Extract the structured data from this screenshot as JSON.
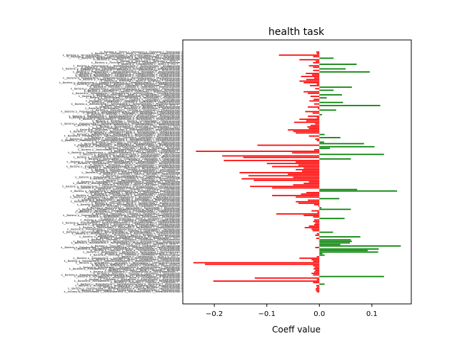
{
  "chart_data": {
    "type": "bar",
    "orientation": "horizontal",
    "title": "health task",
    "xlabel": "Coeff value",
    "ylabel": "",
    "xlim": [
      -0.26,
      0.175
    ],
    "xticks": [
      -0.2,
      -0.1,
      0.0,
      0.1
    ],
    "xtick_labels": [
      "−0.2",
      "−0.1",
      "0.0",
      "0.1"
    ],
    "grid": false,
    "legend": "none",
    "colors": {
      "positive": "#008000",
      "negative": "#ff0000",
      "axes": "#000000"
    },
    "categories": [
      "k__Bacteria; p__Thermi; c__Deinococci; o__Thermales; f__Thermaceae",
      "k__Bacteria; p__Firmicutes; c__Bacilli; o__Lactobacillales; f__Streptococcaceae",
      "k__Bacteria; p__Verrucomicrobia; c__Verrucomicrobiae; o__Verrucomicrobiales; f__Verrucomicrobiaceae",
      "k__Bacteria; p__Proteobacteria; c__Gammaproteobacteria; o__Pseudomonadales; f__Moraxellaceae",
      "k__Bacteria; p__Bacteroidetes; c__Bacteroidia; o__Bacteroidales; f__Porphyromonadaceae",
      "k__Bacteria; p__Firmicutes; c__Clostridia; o__Clostridiales; f__Veillonellaceae",
      "k__Bacteria; p__Tenericutes; c__Mollicutes; o__RF39; f__",
      "k__Bacteria; p__Firmicutes; c__Clostridia; o__Clostridiales; f__Lachnospiraceae",
      "k__Bacteria; p__Cyanobacteria; c__4C0d-2; o__YS2; f__",
      "k__Bacteria; p__Proteobacteria; c__Betaproteobacteria; o__Burkholderiales; f__Alcaligenaceae",
      "k__Bacteria; p__Spirochaetes; c__Spirochaetes; o__Spirochaetales; f__Spirochaetaceae",
      "k__Bacteria; p__Proteobacteria; c__Gammaproteobacteria; o__Enterobacteriales; f__Enterobacteriaceae",
      "k__Bacteria; p__Actinobacteria; c__Actinobacteria; o__Actinomycetales; f__Micrococcaceae",
      "k__Bacteria; p__Proteobacteria; c__Alphaproteobacteria; o__Rhizobiales; f__Bradyrhizobiaceae",
      "k__Bacteria; p__Firmicutes; c__Erysipelotrichi; o__Erysipelotrichales; f__Erysipelotrichaceae",
      "k__Bacteria; p__Actinobacteria; c__Coriobacteriia; o__Coriobacteriales; f__Coriobacteriaceae",
      "k__Bacteria; p__Bacteroidetes; c__Flavobacteriia; o__Flavobacteriales; f__Flavobacteriaceae",
      "k__Bacteria; p__Proteobacteria; c__Deltaproteobacteria; o__Desulfovibrionales; f__Desulfovibrionaceae",
      "k__Bacteria; p__Fusobacteria; c__Fusobacteriia; o__Fusobacteriales; f__Fusobacteriaceae",
      "k__Bacteria; p__Firmicutes; c__Bacilli; o__Gemellales; f__Gemellaceae",
      "k__Bacteria; p__Proteobacteria; c__Epsilonproteobacteria; o__Campylobacterales; f__Campylobacteraceae",
      "k__Bacteria; p__Actinobacteria; c__Actinobacteria; o__Bifidobacteriales; f__Bifidobacteriaceae",
      "k__Bacteria; p__Bacteroidetes; c__Bacteroidia; o__Bacteroidales; f__Rikenellaceae",
      "k__Bacteria; p__Firmicutes; c__Clostridia; o__Clostridiales; f__Ruminococcaceae",
      "k__Bacteria; p__Proteobacteria; c__Gammaproteobacteria; o__Pasteurellales; f__Pasteurellaceae",
      "k__Bacteria; p__Lentisphaerae; c__[Lentisphaeria]; o__Victivallales; f__Victivallaceae",
      "k__Bacteria; p__Firmicutes; c__Clostridia; o__Clostridiales; f__Peptostreptococcaceae",
      "k__Bacteria; p__Actinobacteria; c__Actinobacteria; o__Actinomycetales; f__Corynebacteriaceae",
      "k__Bacteria; p__Firmicutes; c__Bacilli; o__Lactobacillales; f__Lactobacillaceae",
      "k__Bacteria; p__Proteobacteria; c__Betaproteobacteria; o__Neisseriales; f__Neisseriaceae",
      "k__Bacteria; p__Bacteroidetes; c__Bacteroidia; o__Bacteroidales; f__Prevotellaceae",
      "k__Bacteria; p__Firmicutes; c__Clostridia; o__Clostridiales; f__Clostridiaceae",
      "k__Bacteria; p__Synergistetes; c__Synergistia; o__Synergistales; f__Synergistaceae",
      "k__Bacteria; p__Firmicutes; c__Clostridia; o__Clostridiales; f__[Mogibacteriaceae]",
      "k__Bacteria; p__Actinobacteria; c__Actinobacteria; o__Actinomycetales; f__Propionibacteriaceae",
      "k__Bacteria; p__Proteobacteria; c__Alphaproteobacteria; o__RF32; f__",
      "k__Bacteria; p__Firmicutes; c__Bacilli; o__Bacillales; f__Staphylococcaceae",
      "k__Bacteria; p__Bacteroidetes; c__Bacteroidia; o__Bacteroidales; f__Bacteroidaceae",
      "k__Bacteria; p__Firmicutes; c__Clostridia; o__Clostridiales; f__[Tissierellaceae]",
      "k__Bacteria; p__Proteobacteria; c__Gammaproteobacteria; o__Xanthomonadales; f__Xanthomonadaceae",
      "k__Bacteria; p__Bacteroidetes; c__Bacteroidia; o__Bacteroidales; f__[Barnesiellaceae]",
      "k__Bacteria; p__Firmicutes; c__Clostridia; o__Clostridiales; f__Christensenellaceae",
      "k__Bacteria; p__Proteobacteria; c__Alphaproteobacteria; o__Rhodospirillales; f__Rhodospirillaceae",
      "k__Bacteria; p__Proteobacteria; c__Betaproteobacteria; o__Burkholderiales; f__Comamonadaceae",
      "k__Bacteria; p__Bacteroidetes; c__Bacteroidia; o__Bacteroidales; f__[Paraprevotellaceae]",
      "k__Bacteria; p__Firmicutes; c__Bacilli; o__Lactobacillales; f__Enterococcaceae",
      "k__Bacteria; p__Firmicutes; c__Clostridia; o__Clostridiales; f__Eubacteriaceae",
      "k__Bacteria; p__Proteobacteria; c__Gammaproteobacteria; o__Pseudomonadales; f__Pseudomonadaceae",
      "k__Bacteria; p__Actinobacteria; c__Actinobacteria; o__Actinomycetales; f__Actinomycetaceae",
      "k__Bacteria; p__Bacteroidetes; c__Bacteroidia; o__Bacteroidales; f__S24-7",
      "k__Bacteria; p__Firmicutes; c__Clostridia; o__Clostridiales; f__[Odoribacteraceae]",
      "k__Bacteria; p__Tenericutes; c__Mollicutes; o__Anaeroplasmatales; f__Anaeroplasmataceae",
      "k__Bacteria; p__Proteobacteria; c__Betaproteobacteria; o__Burkholderiales; f__Oxalobacteraceae",
      "k__Bacteria; p__Firmicutes; c__Bacilli; o__Turicibacterales; f__Turicibacteraceae",
      "k__Bacteria; p__Actinobacteria; c__Actinobacteria; o__Actinomycetales; f__Dermabacteraceae",
      "k__Bacteria; p__Proteobacteria; c__Gammaproteobacteria; o__Aeromonadales; f__Succinivibrionaceae",
      "k__Bacteria; p__Firmicutes; c__Clostridia; o__Clostridiales; f__Dehalobacteriaceae",
      "k__Bacteria; p__Bacteroidetes; c__Sphingobacteriia; o__Sphingobacteriales; f__Sphingobacteriaceae",
      "k__Bacteria; p__Proteobacteria; c__Alphaproteobacteria; o__Sphingomonadales; f__Sphingomonadaceae",
      "k__Bacteria; p__Firmicutes; c__Clostridia; o__Clostridiales; f__Peptococcaceae",
      "k__Bacteria; p__Tenericutes; c__Mollicutes; o__Mycoplasmatales; f__Mycoplasmataceae",
      "k__Bacteria; p__Actinobacteria; c__Actinobacteria; o__Actinomycetales; f__Brevibacteriaceae",
      "k__Bacteria; p__Proteobacteria; c__Gammaproteobacteria; o__Vibrionales; f__Vibrionaceae",
      "k__Bacteria; p__Firmicutes; c__Bacilli; o__Bacillales; f__Bacillaceae",
      "k__Bacteria; p__Bacteroidetes; c__Flavobacteriia; o__Flavobacteriales; f__[Weeksellaceae]",
      "k__Bacteria; p__Firmicutes; c__Clostridia; o__Clostridiales; f__",
      "k__Bacteria; p__Proteobacteria; c__Alphaproteobacteria; o__Caulobacterales; f__Caulobacteraceae",
      "k__Bacteria; p__Actinobacteria; c__Actinobacteria; o__Actinomycetales; f__Nocardiaceae",
      "k__Bacteria; p__Firmicutes; c__Bacilli; o__Lactobacillales; f__Aerococcaceae",
      "k__Bacteria; p__Proteobacteria; c__Betaproteobacteria; o__Rhodocyclales; f__Rhodocyclaceae",
      "k__Bacteria; p__Bacteroidetes; c__Cytophagia; o__Cytophagales; f__Cytophagaceae",
      "k__Bacteria; p__Firmicutes; c__Clostridia; o__Clostridiales; f__Veillonellaceae",
      "k__Bacteria; p__Proteobacteria; c__Gammaproteobacteria; o__Alteromonadales; f__Shewanellaceae",
      "k__Bacteria; p__Actinobacteria; c__Actinobacteria; o__Actinomycetales; f__Microbacteriaceae",
      "k__Bacteria; p__Firmicutes; c__Bacilli; o__Lactobacillales; f__Carnobacteriaceae",
      "k__Bacteria; p__Proteobacteria; c__Alphaproteobacteria; o__Rhodobacterales; f__Rhodobacteraceae",
      "k__Bacteria; p__Bacteroidetes; c__Bacteroidia; o__Bacteroidales; f__Marinilabiaceae",
      "k__Bacteria; p__Firmicutes; c__Clostridia; o__Clostridiales; f__Lachnospiraceae",
      "k__Bacteria; p__Proteobacteria; c__Deltaproteobacteria; o__Myxococcales; f__",
      "k__Bacteria; p__Actinobacteria; c__Actinobacteria; o__Actinomycetales; f__Dietziaceae",
      "k__Bacteria; p__Firmicutes; c__Bacilli; o__Bacillales; f__Planococcaceae",
      "k__Bacteria; p__Cyanobacteria; c__Chloroplast; o__Streptophyta; f__",
      "k__Bacteria; p__Proteobacteria; c__Gammaproteobacteria; o__Legionellales; f__Coxiellaceae",
      "k__Bacteria; p__Firmicutes; c__Clostridia; o__Clostridiales; f__Ruminococcaceae",
      "k__Bacteria; p__Bacteroidetes; c__Bacteroidia; o__Bacteroidales; f__",
      "k__Bacteria; p__Proteobacteria; c__Alphaproteobacteria; o__Rickettsiales; f__mitochondria",
      "k__Bacteria; p__Actinobacteria; c__Actinobacteria; o__Actinomycetales; f__Intrasporangiaceae",
      "k__Bacteria; p__Firmicutes; c__Bacilli; o__Bacillales; f__Paenibacillaceae",
      "k__Bacteria; p__Proteobacteria; c__Gammaproteobacteria; o__Enterobacteriales; f__Enterobacteriaceae",
      "k__Bacteria; p__Elusimicrobia; c__Elusimicrobia; o__Elusimicrobiales; f__Elusimicrobiaceae",
      "k__Bacteria; p__Firmicutes; c__Clostridia; o__Clostridiales; f__Clostridiaceae",
      "k__Bacteria; p__Proteobacteria; c__Betaproteobacteria; o__Burkholderiales; f__Burkholderiaceae",
      "k__Bacteria; p__Bacteroidetes; c__Bacteroidia; o__Bacteroidales; f__Prevotellaceae",
      "k__Bacteria; p__Firmicutes; c__Bacilli; o__Lactobacillales; f__Leuconostocaceae",
      "k__Bacteria; p__Actinobacteria; c__Actinobacteria; o__Actinomycetales; f__Cellulomonadaceae",
      "k__Bacteria; p__Proteobacteria; c__Alphaproteobacteria; o__Rhizobiales; f__Methylobacteriaceae",
      "k__Bacteria; p__Firmicutes; c__Clostridia; o__Clostridiales; f__Peptostreptococcaceae",
      "k__Bacteria; p__Bacteroidetes; c__Bacteroidia; o__Bacteroidales; f__Porphyromonadaceae",
      "k__Bacteria; p__Proteobacteria; c__Gammaproteobacteria; o__Pasteurellales; f__Pasteurellaceae",
      "k__Bacteria; p__Firmicutes; c__Bacilli; o__Lactobacillales; f__Streptococcaceae",
      "k__Bacteria; p__Actinobacteria; c__Actinobacteria; o__Actinomycetales; f__Micrococcaceae",
      "k__Bacteria; p__Firmicutes; c__Clostridia; o__Clostridiales; f__[Mogibacteriaceae]",
      "k__Bacteria; p__Bacteroidetes; c__Bacteroidia; o__Bacteroidales; f__Rikenellaceae",
      "k__Bacteria; p__Proteobacteria; c__Betaproteobacteria; o__Neisseriales; f__Neisseriaceae",
      "k__Bacteria; p__Firmicutes; c__Erysipelotrichi; o__Erysipelotrichales; f__Erysipelotrichaceae",
      "k__Bacteria; p__Actinobacteria; c__Coriobacteriia; o__Coriobacteriales; f__Coriobacteriaceae",
      "k__Bacteria; p__Firmicutes; c__Clostridia; o__Clostridiales; f__[Tissierellaceae]",
      "k__Bacteria; p__Proteobacteria; c__Deltaproteobacteria; o__Desulfovibrionales; f__Desulfovibrionaceae",
      "k__Bacteria; p__Bacteroidetes; c__Bacteroidia; o__Bacteroidales; f__Bacteroidaceae",
      "k__Bacteria; p__Firmicutes; c__Bacilli; o__Gemellales; f__Gemellaceae",
      "k__Bacteria; p__Fusobacteria; c__Fusobacteriia; o__Fusobacteriales; f__Leptotrichiaceae",
      "k__Bacteria; p__Firmicutes; c__Clostridia; o__Clostridiales; f__Christensenellaceae",
      "k__Bacteria; p__Proteobacteria; c__Epsilonproteobacteria; o__Campylobacterales; f__Helicobacteraceae",
      "k__Bacteria; p__Actinobacteria; c__Actinobacteria; o__Bifidobacteriales; f__Bifidobacteriaceae",
      "k__Bacteria; p__Firmicutes; c__Bacilli; o__Lactobacillales; f__Lactobacillaceae",
      "k__Bacteria; p__Bacteroidetes; c__Bacteroidia; o__Bacteroidales; f__[Paraprevotellaceae]",
      "k__Bacteria; p__Proteobacteria; c__Gammaproteobacteria; o__Pseudomonadales; f__Moraxellaceae",
      "k__Bacteria; p__Firmicutes; c__Clostridia; o__Clostridiales; f__Eubacteriaceae",
      "k__Bacteria; p__Verrucomicrobia; c__Verrucomicrobiae; o__Verrucomicrobiales; f__Verrucomicrobiaceae",
      "k__Bacteria; p__Actinobacteria; c__Actinobacteria; o__Actinomycetales; f__Corynebacteriaceae",
      "k__Bacteria; p__Firmicutes; c__Bacilli; o__Bacillales; f__Staphylococcaceae",
      "k__Bacteria; p__Proteobacteria; c__Alphaproteobacteria; o__Rhizobiales; f__Brucellaceae",
      "k__Bacteria; p__Bacteroidetes; c__Bacteroidia; o__Bacteroidales; f__S24-7",
      "k__Bacteria; p__Firmicutes; c__Clostridia; o__Clostridiales; f__Dehalobacteriaceae",
      "k__Bacteria; p__Proteobacteria; c__Betaproteobacteria; o__Burkholderiales; f__Alcaligenaceae",
      "k__Bacteria; p__Actinobacteria; c__Actinobacteria; o__Actinomycetales; f__Propionibacteriaceae",
      "k__Bacteria; p__Tenericutes; c__Mollicutes; o__RF39; f__",
      "k__Bacteria; p__Firmicutes; c__Clostridia; o__Clostridiales; f__Lachnospiraceae",
      "k__Bacteria; p__Proteobacteria; c__Gammaproteobacteria; o__Xanthomonadales; f__Xanthomonadaceae",
      "k__Bacteria; p__Actinobacteria; c__Actinobacteria; o__Actinomycetales; f__Actinomycetaceae",
      "k__Bacteria; p__Firmicutes; c__Bacilli; o__Turicibacterales; f__Turicibacteraceae",
      "k__Bacteria; p__Bacteroidetes; c__Bacteroidia; o__Bacteroidales; f__[Barnesiellaceae]",
      "k__Bacteria; p__Proteobacteria; c__Alphaproteobacteria; o__RF32; f__",
      "k__Bacteria; p__Firmicutes; c__Clostridia; o__Clostridiales; f__Ruminococcaceae",
      "k__Bacteria; p__Cyanobacteria; c__4C0d-2; o__YS2; f__",
      "k__Bacteria; p__Actinobacteria; c__Actinobacteria; o__Actinomycetales; f__Dermabacteraceae",
      "k__Bacteria; p__Firmicutes; c__Bacilli; o__Lactobacillales; f__Enterococcaceae",
      "k__Bacteria; p__Proteobacteria; c__Gammaproteobacteria; o__Aeromonadales; f__Succinivibrionaceae",
      "k__Bacteria; p__Synergistetes; c__Synergistia; o__Synergistales; f__Dethiosulfovibrionaceae",
      "k__Bacteria; p__Acidobacteria; c__[Chloracidobacteria]; o__RB41; f__Ellin6075",
      "k__Bacteria; p__Firmicutes; c__Clostridia; o__Clostridiales; f__Peptococcaceae",
      "k__Bacteria; p__Actinobacteria; c__Actinobacteria; o__Actinomycetales; f__Nocardiaceae",
      "k__Bacteria; p__Proteobacteria; c__Betaproteobacteria; o__Burkholderiales; f__Comamonadaceae",
      "k__Bacteria; p__Firmicutes; c__Bacilli; o__Bacillales; f__Bacillaceae",
      "k__Bacteria; p__Actinobacteria; c__Thermoleophilia; o__Solirubrobacterales; f__",
      "k__Bacteria; p__Firmicutes; c__Clostridia; o__Clostridiales; f__Veillonellaceae",
      "k__Bacteria; p__Proteobacteria; c__Alphaproteobacteria; o__Sphingomonadales; f__Sphingomonadaceae",
      "k__Bacteria; p__Actinobacteria; c__Actinobacteria; o__Actinomycetales; f__Brevibacteriaceae",
      "k__Bacteria; p__Firmicutes; c__Bacilli; o__Lactobacillales; f__Aerococcaceae",
      "k__Bacteria; p__Chloroflexi; c__Anaerolineae; o__Anaerolineales; f__Anaerolinaceae",
      "k__Bacteria; p__Actinobacteria; c__Actinobacteria; o__Actinomycetales; f__Microbacteriaceae",
      "k__Bacteria; p__Firmicutes; c__Clostridia; o__Clostridiales; f__",
      "k__Bacteria; p__Proteobacteria; c__Gammaproteobacteria; o__Vibrionales; f__Vibrionaceae",
      "k__Bacteria; p__Acidobacteria; c__Acidobacteriia; o__Acidobacteriales; f__Acidobacteriaceae",
      "k__Bacteria; p__Firmicutes; c__Bacilli; o__Bacillales; f__Planococcaceae",
      "k__Bacteria; p__Proteobacteria; c__Alphaproteobacteria; o__Caulobacterales; f__Caulobacteraceae",
      "k__Bacteria; p__Bacteroidetes; c__Flavobacteriia; o__Flavobacteriales; f__[Weeksellaceae]",
      "k__Archaea; p__Euryarchaeota; c__Methanobacteria; o__Methanobacteriales; f__Methanobacteriaceae"
    ],
    "values": [
      -0.006,
      -0.005,
      -0.077,
      -0.012,
      0.027,
      -0.038,
      -0.007,
      -0.012,
      0.071,
      -0.02,
      -0.012,
      0.05,
      -0.012,
      0.096,
      -0.026,
      -0.014,
      -0.035,
      -0.01,
      -0.025,
      -0.038,
      -0.03,
      -0.005,
      -0.018,
      0.062,
      -0.008,
      0.027,
      -0.03,
      -0.022,
      0.043,
      -0.017,
      0.014,
      -0.011,
      -0.019,
      0.045,
      -0.01,
      0.116,
      -0.022,
      -0.003,
      0.032,
      -0.027,
      -0.013,
      0.005,
      -0.022,
      -0.005,
      -0.038,
      -0.025,
      -0.048,
      -0.008,
      -0.017,
      -0.023,
      -0.02,
      -0.06,
      -0.05,
      -0.045,
      0.01,
      -0.02,
      0.04,
      -0.008,
      -0.005,
      0.009,
      0.085,
      -0.118,
      0.105,
      0.02,
      -0.01,
      -0.235,
      -0.052,
      0.123,
      -0.185,
      -0.145,
      0.06,
      -0.182,
      -0.045,
      -0.1,
      -0.04,
      -0.09,
      -0.03,
      -0.045,
      -0.033,
      -0.152,
      -0.06,
      -0.135,
      -0.05,
      -0.148,
      -0.125,
      -0.02,
      -0.03,
      -0.05,
      -0.132,
      -0.09,
      0.072,
      0.148,
      -0.025,
      -0.035,
      -0.09,
      -0.045,
      0.038,
      -0.022,
      -0.045,
      -0.04,
      -0.01,
      -0.002,
      0.004,
      0.06,
      -0.015,
      -0.004,
      -0.082,
      -0.03,
      -0.012,
      0.048,
      -0.01,
      -0.012,
      -0.008,
      -0.01,
      -0.02,
      -0.028,
      -0.015,
      -0.013,
      0.026,
      -0.005,
      -0.008,
      0.078,
      -0.006,
      0.06,
      0.062,
      0.058,
      0.04,
      0.155,
      -0.008,
      0.113,
      0.092,
      0.112,
      0.006,
      0.01,
      -0.005,
      -0.038,
      -0.015,
      -0.012,
      -0.24,
      -0.218,
      -0.012,
      -0.009,
      -0.011,
      -0.008,
      -0.01,
      -0.015,
      -0.012,
      0.123,
      -0.123,
      -0.005,
      -0.202,
      -0.012,
      0.01,
      -0.006,
      -0.005,
      -0.007,
      -0.007,
      -0.005
    ]
  }
}
